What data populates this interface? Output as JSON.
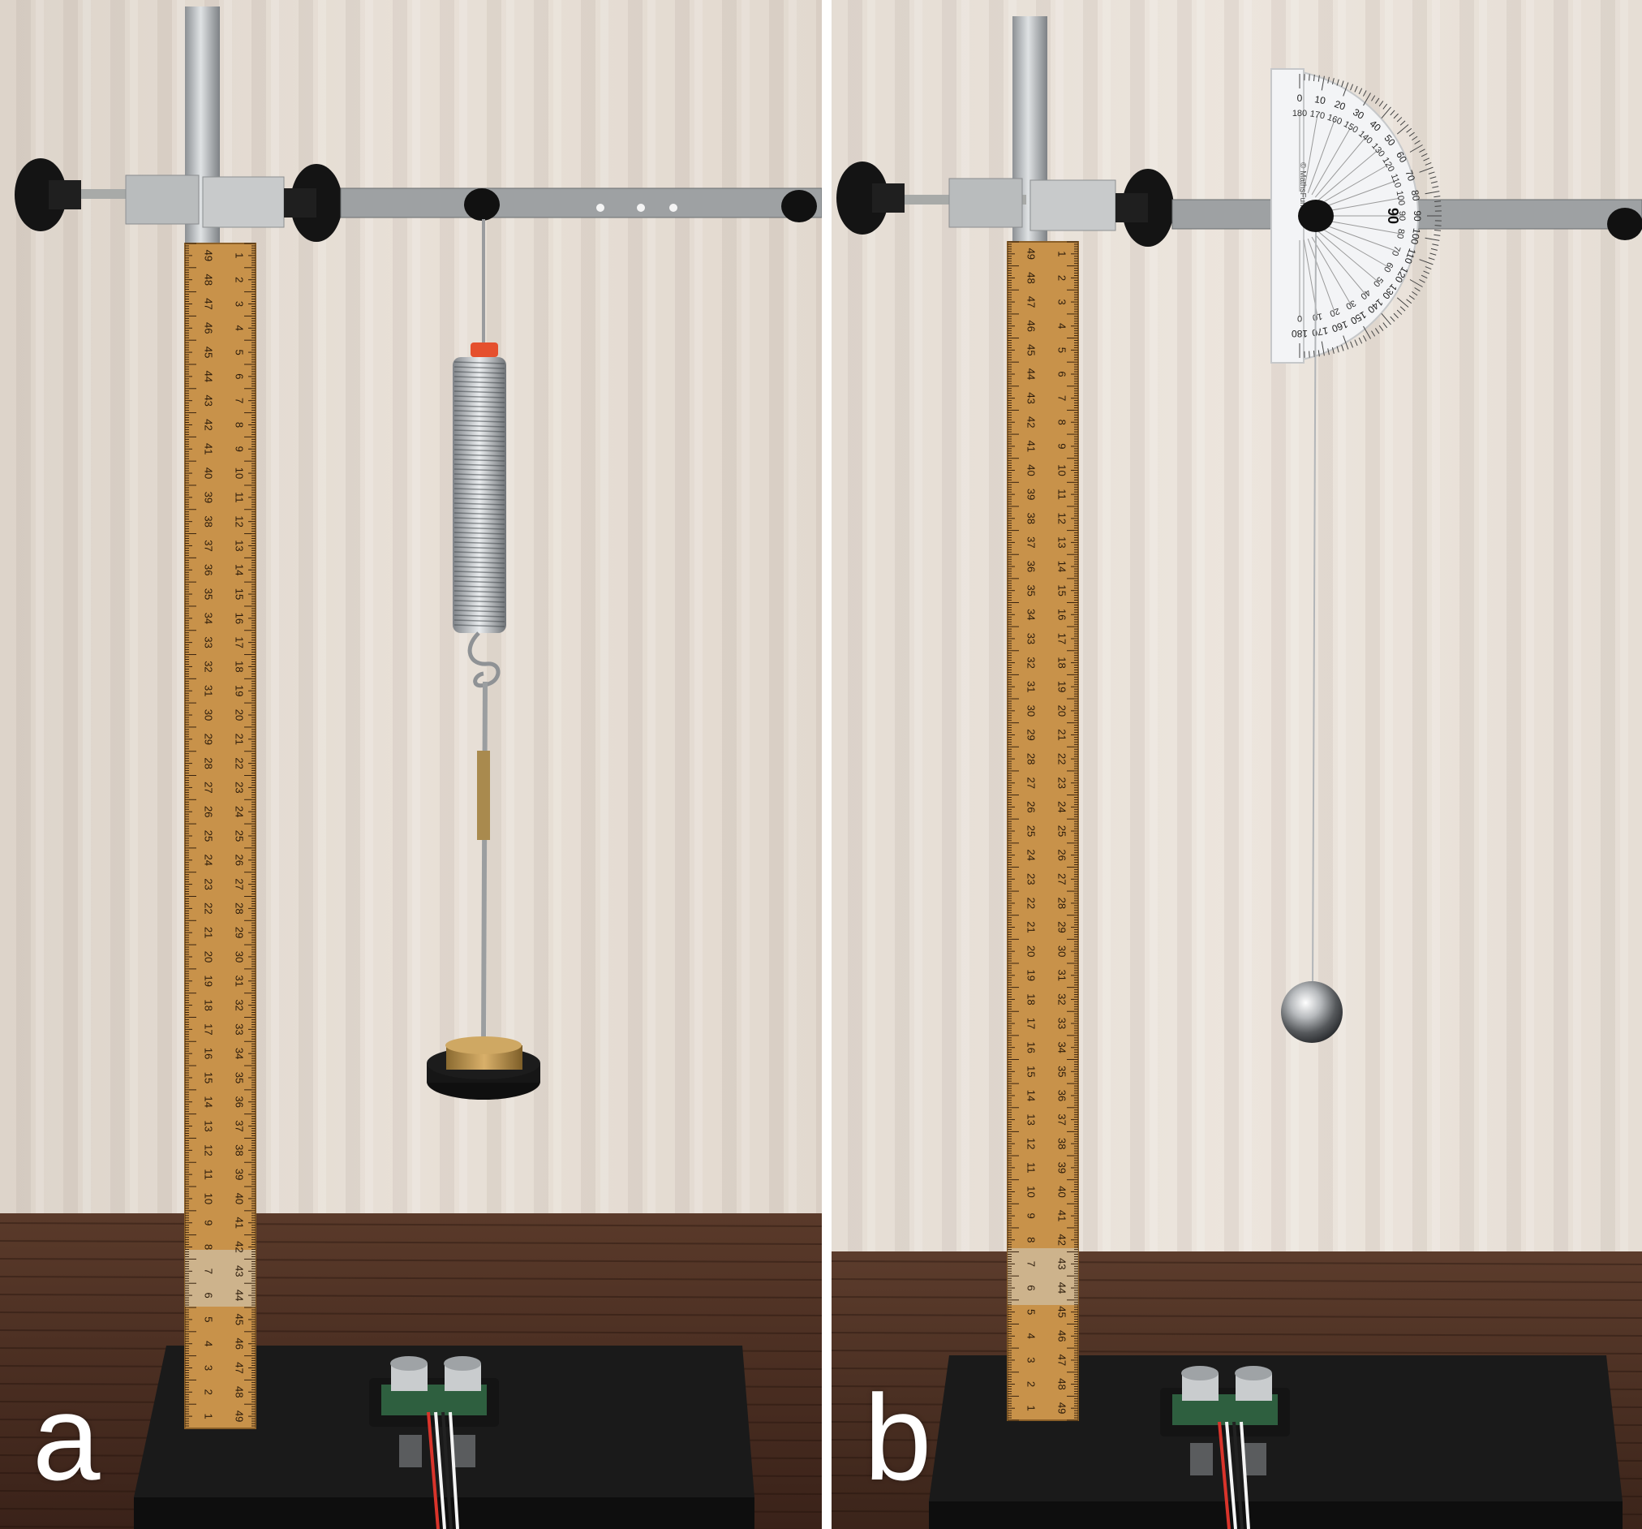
{
  "figure": {
    "panels": [
      {
        "label": "a",
        "content": "spring-mass"
      },
      {
        "label": "b",
        "content": "pendulum"
      }
    ]
  },
  "ruler": {
    "left_numbers": [
      "49",
      "48",
      "47",
      "46",
      "45",
      "44",
      "43",
      "42",
      "41",
      "40",
      "39",
      "38",
      "37",
      "36",
      "35",
      "34",
      "33",
      "32",
      "31",
      "30",
      "29",
      "28",
      "27",
      "26",
      "25",
      "24",
      "23",
      "22",
      "21",
      "20",
      "19",
      "18",
      "17",
      "16",
      "15",
      "14",
      "13",
      "12",
      "11",
      "10",
      "9",
      "8",
      "7",
      "6",
      "5",
      "4",
      "3",
      "2",
      "1"
    ],
    "right_numbers": [
      "1",
      "2",
      "3",
      "4",
      "5",
      "6",
      "7",
      "8",
      "9",
      "10",
      "11",
      "12",
      "13",
      "14",
      "15",
      "16",
      "17",
      "18",
      "19",
      "20",
      "21",
      "22",
      "23",
      "24",
      "25",
      "26",
      "27",
      "28",
      "29",
      "30",
      "31",
      "32",
      "33",
      "34",
      "35",
      "36",
      "37",
      "38",
      "39",
      "40",
      "41",
      "42",
      "43",
      "44",
      "45",
      "46",
      "47",
      "48",
      "49"
    ]
  },
  "protractor": {
    "outer_scale": [
      "0",
      "10",
      "20",
      "30",
      "40",
      "50",
      "60",
      "70",
      "80",
      "90",
      "100",
      "110",
      "120",
      "130",
      "140",
      "150",
      "160",
      "170",
      "180"
    ],
    "inner_scale": [
      "180",
      "170",
      "160",
      "150",
      "140",
      "130",
      "120",
      "110",
      "100",
      "90",
      "80",
      "70",
      "60",
      "50",
      "40",
      "30",
      "20",
      "10",
      "0"
    ],
    "center_mark": "90",
    "brand_text": "© MathsFun.com"
  },
  "colors": {
    "curtain": "#e4dbd2",
    "table": "#4a2e22",
    "base": "#151515",
    "ruler": "#c8924a",
    "steel": "#b8bcc0",
    "brass": "#b8904a"
  }
}
